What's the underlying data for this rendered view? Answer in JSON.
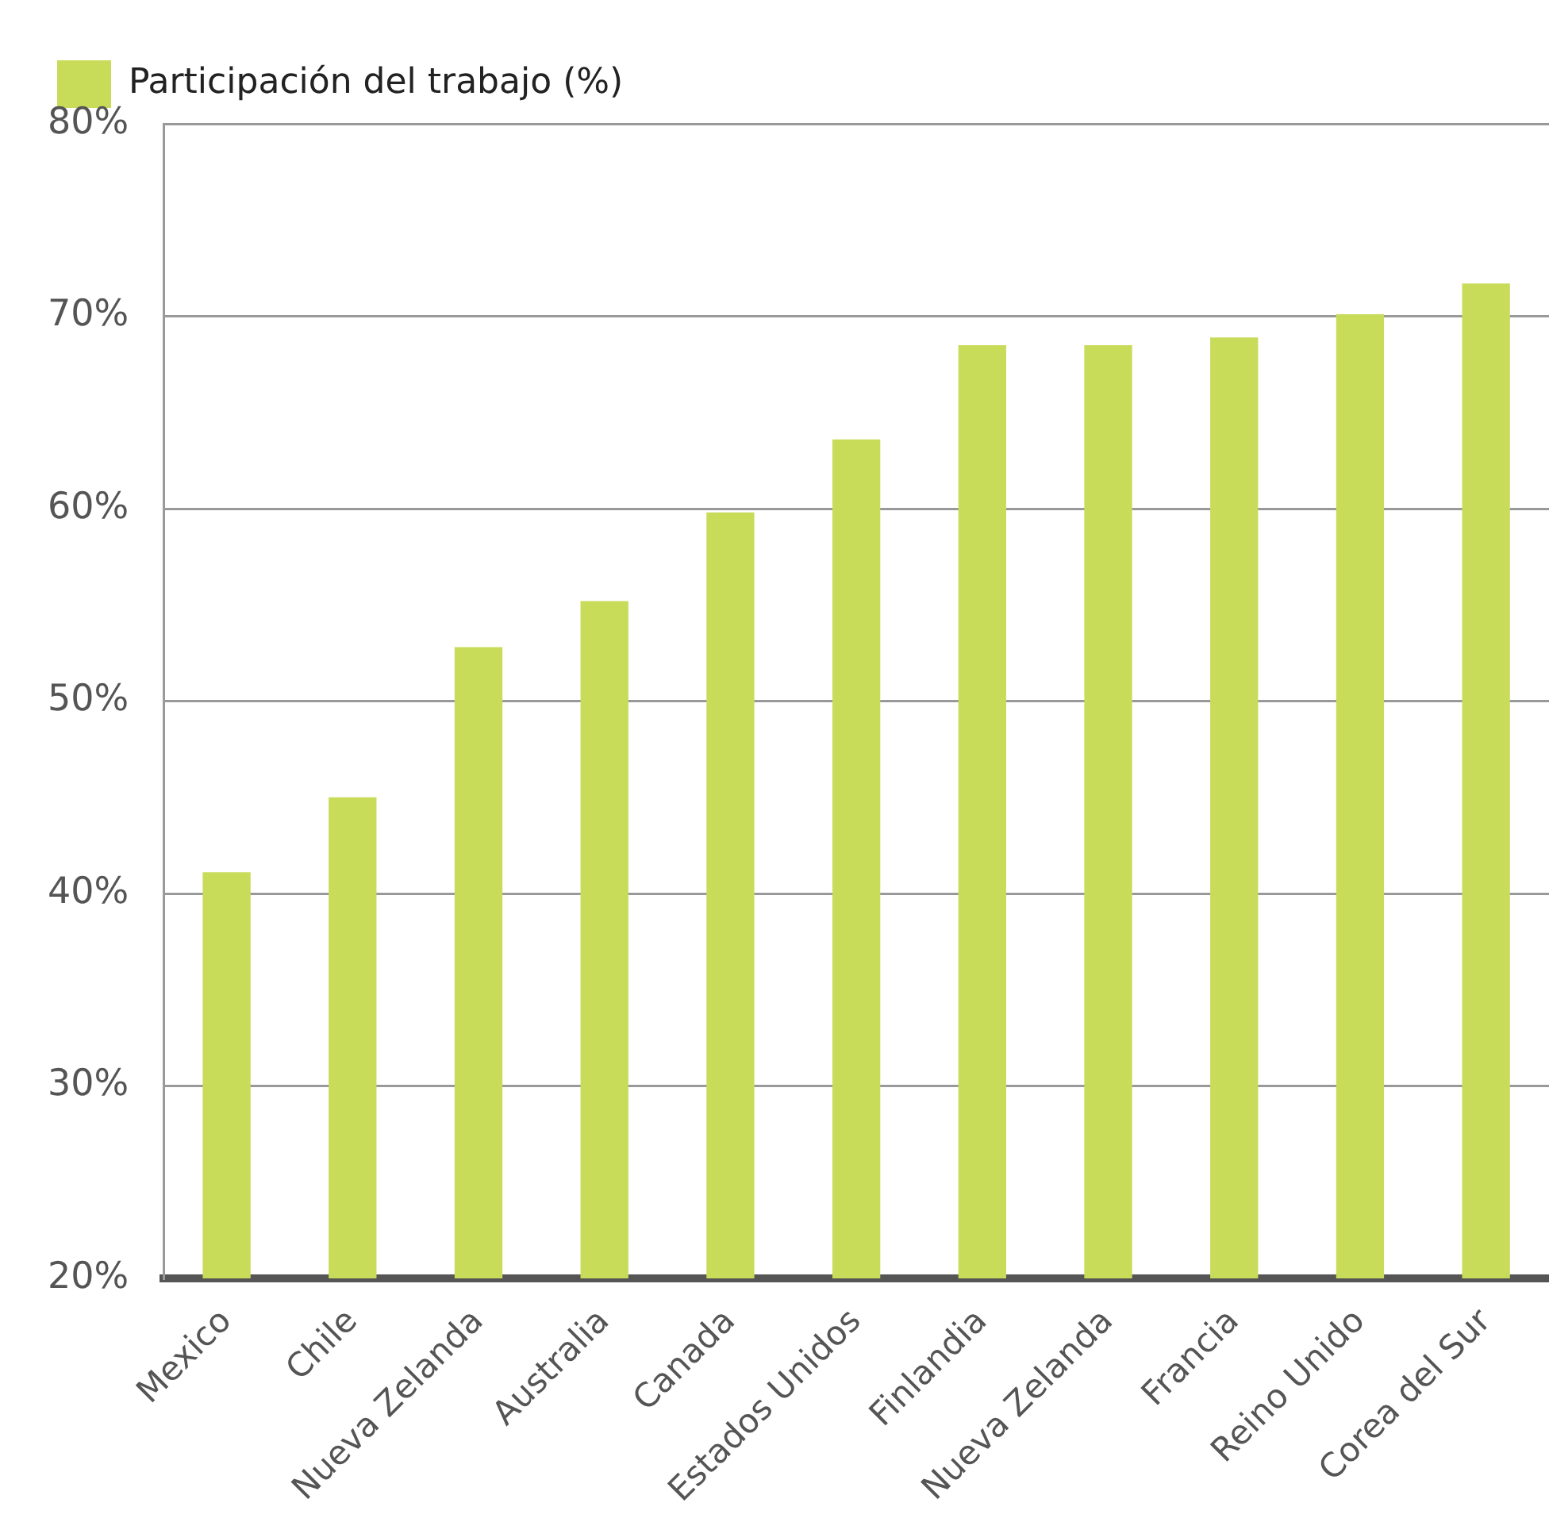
{
  "chart_data": {
    "type": "bar",
    "categories": [
      "Mexico",
      "Chile",
      "Nueva Zelanda",
      "Australia",
      "Canada",
      "Estados Unidos",
      "Finlandia",
      "Nueva Zelanda",
      "Francia",
      "Reino Unido",
      "Corea del Sur"
    ],
    "series": [
      {
        "name": "Participación del trabajo (%)",
        "color": "#c8dc5a",
        "values": [
          41.1,
          45.0,
          52.8,
          55.2,
          59.8,
          63.6,
          68.5,
          68.5,
          68.9,
          70.1,
          71.7
        ]
      }
    ],
    "ylim": [
      20,
      80
    ],
    "yticks": [
      {
        "value": 20,
        "label": "20%"
      },
      {
        "value": 30,
        "label": "30%"
      },
      {
        "value": 40,
        "label": "40%"
      },
      {
        "value": 50,
        "label": "50%"
      },
      {
        "value": 60,
        "label": "60%"
      },
      {
        "value": 70,
        "label": "70%"
      },
      {
        "value": 80,
        "label": "80%"
      }
    ],
    "grid": "y",
    "legend": "top left"
  }
}
